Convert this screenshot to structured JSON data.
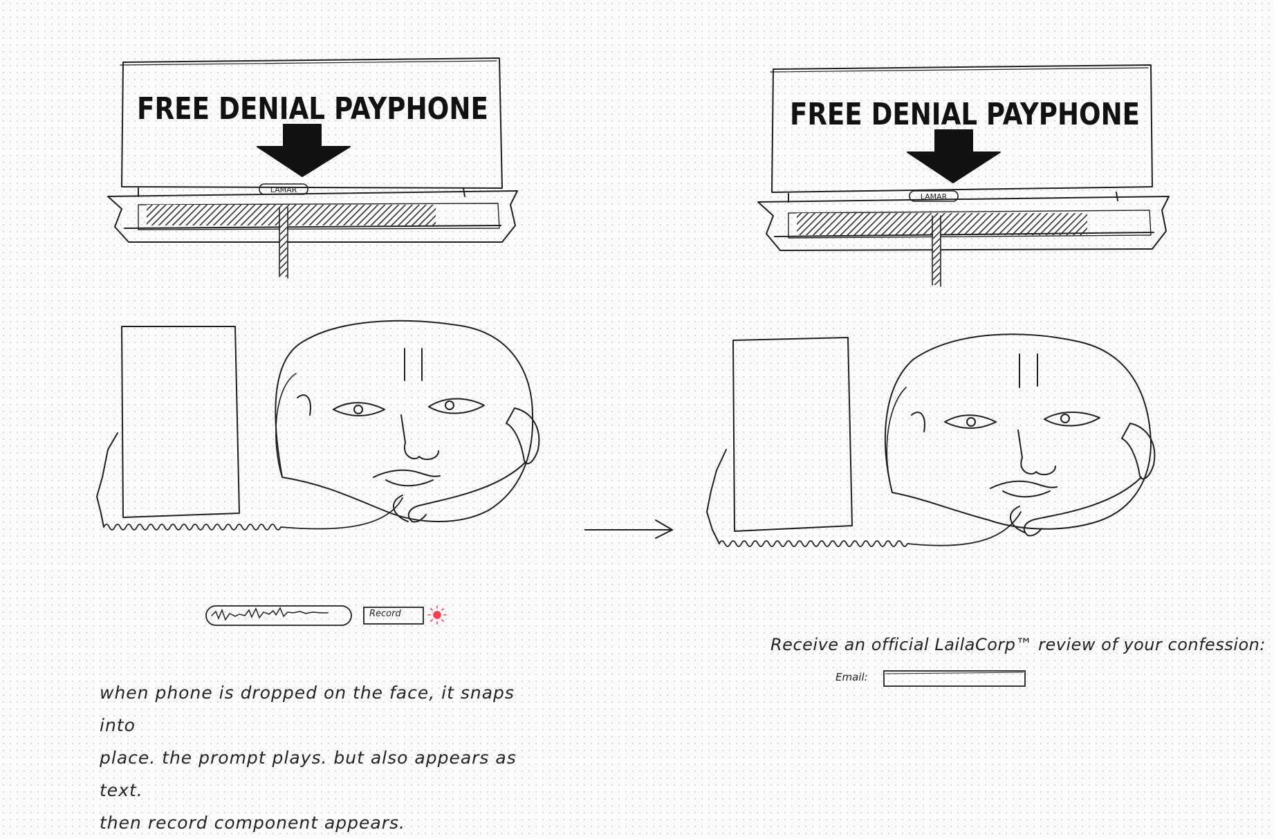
{
  "left_panel": {
    "sign_title": "FREE DENIAL PAYPHONE",
    "street_label": "LAMAR",
    "record_button_label": "Record",
    "note_lines": [
      "when phone is dropped on the face, it snaps into",
      "place. the prompt plays. but also appears as text.",
      "then record component appears."
    ]
  },
  "right_panel": {
    "sign_title": "FREE DENIAL PAYPHONE",
    "street_label": "LAMAR",
    "review_prompt": "Receive an official LailaCorp™ review of your confession:",
    "email_label": "Email:",
    "email_value": ""
  },
  "colors": {
    "ink": "#1e1e1e",
    "record_indicator": "#ff3b4e",
    "paper": "#fbfbfb"
  },
  "icons": {
    "arrow": "down-arrow-icon",
    "transition": "right-arrow-icon",
    "record_dot": "record-indicator-icon"
  }
}
